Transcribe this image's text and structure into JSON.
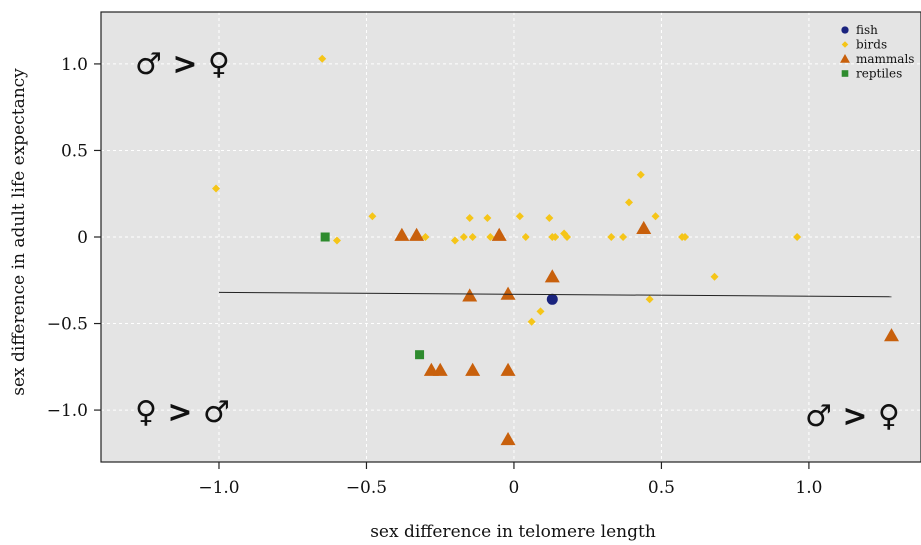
{
  "chart_data": {
    "type": "scatter",
    "title": "",
    "xlabel": "sex difference in telomere length",
    "ylabel": "sex difference in adult life expectancy",
    "xlim": [
      -1.4,
      1.38
    ],
    "ylim": [
      -1.3,
      1.3
    ],
    "x_ticks": [
      -1.0,
      -0.5,
      0,
      0.5,
      1.0
    ],
    "x_tick_labels": [
      "−1.0",
      "−0.5",
      "0",
      "0.5",
      "1.0"
    ],
    "y_ticks": [
      1.0,
      0.5,
      0,
      -0.5,
      -1.0
    ],
    "y_tick_labels": [
      "1.0",
      "0.5",
      "0",
      "−0.5",
      "−1.0"
    ],
    "grid": true,
    "legend_position": "top-right",
    "colors": {
      "fish": "#1a237e",
      "birds": "#f5c518",
      "mammals": "#c8600c",
      "reptiles": "#2e8b2e",
      "background": "#e4e4e4",
      "grid": "#ffffff"
    },
    "series": [
      {
        "name": "fish",
        "marker": "circle",
        "points": [
          [
            0.13,
            -0.36
          ]
        ]
      },
      {
        "name": "birds",
        "marker": "diamond",
        "points": [
          [
            -0.65,
            1.03
          ],
          [
            -1.01,
            0.28
          ],
          [
            -0.6,
            -0.02
          ],
          [
            -0.48,
            0.12
          ],
          [
            -0.3,
            0.0
          ],
          [
            -0.2,
            -0.02
          ],
          [
            -0.17,
            0.0
          ],
          [
            -0.15,
            0.11
          ],
          [
            -0.14,
            0.0
          ],
          [
            -0.09,
            0.11
          ],
          [
            -0.08,
            0.0
          ],
          [
            0.02,
            0.12
          ],
          [
            0.04,
            0.0
          ],
          [
            0.12,
            0.11
          ],
          [
            0.13,
            0.0
          ],
          [
            0.14,
            0.0
          ],
          [
            0.17,
            0.02
          ],
          [
            0.18,
            0.0
          ],
          [
            0.33,
            0.0
          ],
          [
            0.37,
            0.0
          ],
          [
            0.39,
            0.2
          ],
          [
            0.43,
            0.36
          ],
          [
            0.46,
            -0.36
          ],
          [
            0.48,
            0.12
          ],
          [
            0.57,
            0.0
          ],
          [
            0.58,
            0.0
          ],
          [
            0.68,
            -0.23
          ],
          [
            0.96,
            0.0
          ],
          [
            0.06,
            -0.49
          ],
          [
            0.09,
            -0.43
          ]
        ]
      },
      {
        "name": "mammals",
        "marker": "triangle",
        "points": [
          [
            -0.38,
            0.01
          ],
          [
            -0.33,
            0.01
          ],
          [
            -0.05,
            0.01
          ],
          [
            0.44,
            0.05
          ],
          [
            0.13,
            -0.23
          ],
          [
            -0.15,
            -0.34
          ],
          [
            -0.02,
            -0.33
          ],
          [
            -0.28,
            -0.77
          ],
          [
            -0.25,
            -0.77
          ],
          [
            -0.14,
            -0.77
          ],
          [
            -0.02,
            -0.77
          ],
          [
            -0.02,
            -1.17
          ],
          [
            1.28,
            -0.57
          ]
        ]
      },
      {
        "name": "reptiles",
        "marker": "square",
        "points": [
          [
            -0.64,
            0.0
          ],
          [
            -0.32,
            -0.68
          ]
        ]
      }
    ],
    "trend_line": {
      "x": [
        -1.0,
        1.28
      ],
      "y": [
        -0.32,
        -0.345
      ]
    },
    "annotations": [
      {
        "text": "♂ > ♀",
        "position": "top-left"
      },
      {
        "text": "♀ > ♂",
        "position": "bottom-left"
      },
      {
        "text": "♂ > ♀",
        "position": "bottom-right"
      }
    ]
  }
}
